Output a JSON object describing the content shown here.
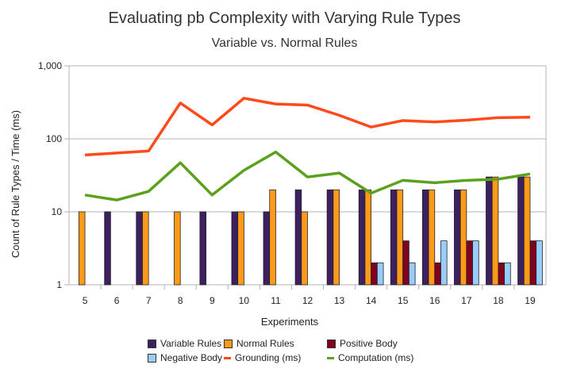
{
  "chart_data": {
    "type": "bar",
    "title": "Evaluating pb Complexity with Varying Rule Types",
    "subtitle": "Variable vs. Normal Rules",
    "xlabel": "Experiments",
    "ylabel": "Count of Rule Types / Time (ms)",
    "yscale": "log",
    "ylim": [
      1,
      1000
    ],
    "yticks": [
      "1",
      "10",
      "100",
      "1,000"
    ],
    "grid": true,
    "legend_position": "bottom",
    "categories": [
      "5",
      "6",
      "7",
      "8",
      "9",
      "10",
      "11",
      "12",
      "13",
      "14",
      "15",
      "16",
      "17",
      "18",
      "19"
    ],
    "series": [
      {
        "name": "Variable Rules",
        "kind": "bar",
        "color": "#3d2060",
        "values": [
          0,
          10,
          10,
          0,
          10,
          10,
          10,
          20,
          20,
          20,
          20,
          20,
          20,
          30,
          30
        ]
      },
      {
        "name": "Normal Rules",
        "kind": "bar",
        "color": "#ff9a1a",
        "values": [
          10,
          0,
          10,
          10,
          0,
          10,
          20,
          10,
          20,
          20,
          20,
          20,
          20,
          30,
          30
        ]
      },
      {
        "name": "Positive Body",
        "kind": "bar",
        "color": "#800020",
        "values": [
          0,
          0,
          0,
          0,
          0,
          0,
          0,
          0,
          0,
          2,
          4,
          2,
          4,
          2,
          4
        ]
      },
      {
        "name": "Negative Body",
        "kind": "bar",
        "color": "#99ccff",
        "values": [
          0,
          0,
          0,
          0,
          0,
          0,
          0,
          0,
          0,
          2,
          2,
          4,
          4,
          2,
          4
        ]
      },
      {
        "name": "Grounding (ms)",
        "kind": "line",
        "color": "#ff4a1a",
        "values": [
          60,
          64,
          68,
          310,
          155,
          360,
          300,
          290,
          210,
          145,
          178,
          170,
          180,
          195,
          198
        ]
      },
      {
        "name": "Computation (ms)",
        "kind": "line",
        "color": "#5ca11d",
        "values": [
          17,
          14.5,
          19,
          47,
          17,
          37,
          66,
          30,
          34,
          18,
          27,
          25,
          27,
          28,
          33
        ]
      }
    ]
  }
}
